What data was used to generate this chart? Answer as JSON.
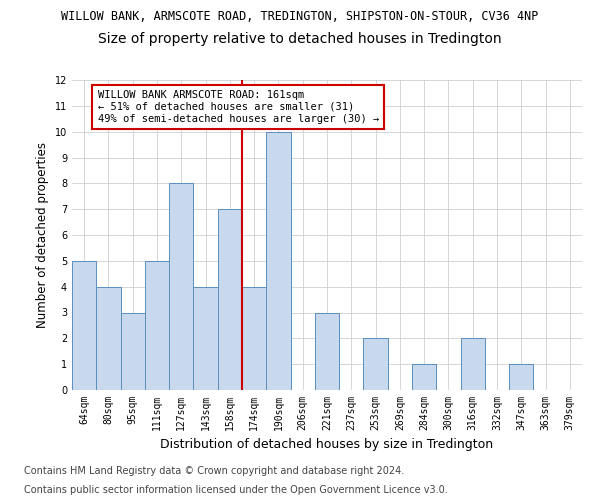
{
  "title": "WILLOW BANK, ARMSCOTE ROAD, TREDINGTON, SHIPSTON-ON-STOUR, CV36 4NP",
  "subtitle": "Size of property relative to detached houses in Tredington",
  "xlabel": "Distribution of detached houses by size in Tredington",
  "ylabel": "Number of detached properties",
  "categories": [
    "64sqm",
    "80sqm",
    "95sqm",
    "111sqm",
    "127sqm",
    "143sqm",
    "158sqm",
    "174sqm",
    "190sqm",
    "206sqm",
    "221sqm",
    "237sqm",
    "253sqm",
    "269sqm",
    "284sqm",
    "300sqm",
    "316sqm",
    "332sqm",
    "347sqm",
    "363sqm",
    "379sqm"
  ],
  "values": [
    5,
    4,
    3,
    5,
    8,
    4,
    7,
    4,
    10,
    0,
    3,
    0,
    2,
    0,
    1,
    0,
    2,
    0,
    1,
    0,
    0
  ],
  "bar_color": "#c9d9ed",
  "bar_edge_color": "#5b8fbe",
  "ylim": [
    0,
    12
  ],
  "yticks": [
    0,
    1,
    2,
    3,
    4,
    5,
    6,
    7,
    8,
    9,
    10,
    11,
    12
  ],
  "marker_col_index": 6,
  "marker_color": "#cc0000",
  "annotation_text": "WILLOW BANK ARMSCOTE ROAD: 161sqm\n← 51% of detached houses are smaller (31)\n49% of semi-detached houses are larger (30) →",
  "annotation_box_color": "#ffffff",
  "annotation_border_color": "#cc0000",
  "footer_line1": "Contains HM Land Registry data © Crown copyright and database right 2024.",
  "footer_line2": "Contains public sector information licensed under the Open Government Licence v3.0.",
  "title_fontsize": 8.5,
  "subtitle_fontsize": 10,
  "xlabel_fontsize": 9,
  "ylabel_fontsize": 8.5,
  "tick_fontsize": 7,
  "footer_fontsize": 7,
  "annotation_fontsize": 7.5,
  "background_color": "#ffffff",
  "grid_color": "#d0d0d0"
}
